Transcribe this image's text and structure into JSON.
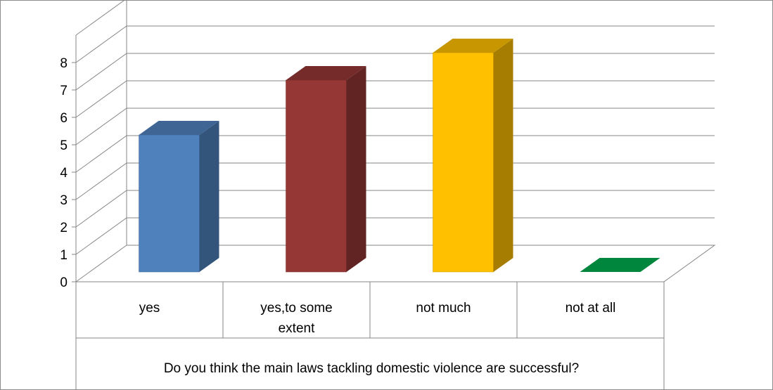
{
  "chart_data": {
    "type": "bar",
    "style": "3d-column",
    "categories": [
      "yes",
      "yes,to some extent",
      "not much",
      "not  at all"
    ],
    "category_lines": [
      [
        "yes"
      ],
      [
        "yes,to some",
        "extent"
      ],
      [
        "not much"
      ],
      [
        "not  at all"
      ]
    ],
    "values": [
      5,
      7,
      8,
      0
    ],
    "colors": [
      "#4F81BD",
      "#953735",
      "#FFC000",
      "#00863D"
    ],
    "ylim": [
      0,
      8
    ],
    "yticks": [
      "0",
      "1",
      "2",
      "3",
      "4",
      "5",
      "6",
      "7",
      "8"
    ],
    "xlabel": "Do you think the main laws tackling domestic violence are successful?",
    "ylabel": "",
    "title": "",
    "grid": true,
    "legend": "none"
  }
}
